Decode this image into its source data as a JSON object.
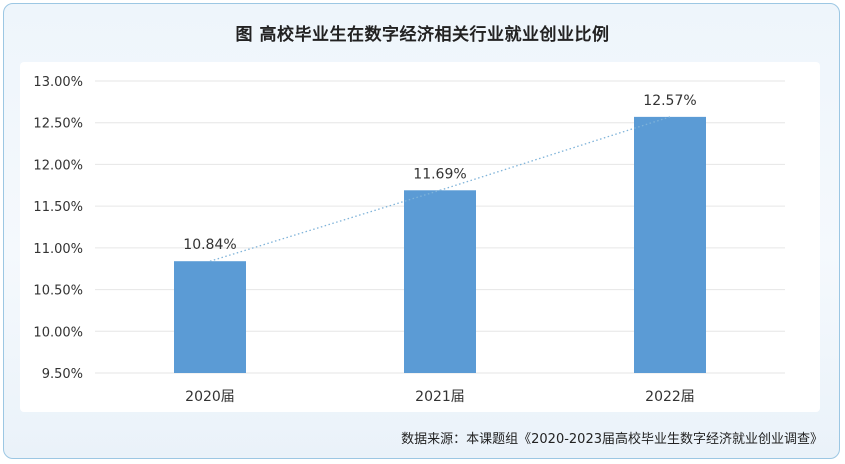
{
  "title": "图  高校毕业生在数字经济相关行业就业创业比例",
  "source": "数据来源：本课题组《2020-2023届高校毕业生数字经济就业创业调查》",
  "colors": {
    "bar": "#5b9bd5",
    "grid": "#e6e6e6",
    "trend": "#7fb3d9",
    "text": "#333333"
  },
  "chart_data": {
    "type": "bar",
    "categories": [
      "2020届",
      "2021届",
      "2022届"
    ],
    "values": [
      10.84,
      11.69,
      12.57
    ],
    "value_labels": [
      "10.84%",
      "11.69%",
      "12.57%"
    ],
    "ylim": [
      9.5,
      13.0
    ],
    "yticks": [
      9.5,
      10.0,
      10.5,
      11.0,
      11.5,
      12.0,
      12.5,
      13.0
    ],
    "ytick_labels": [
      "9.50%",
      "10.00%",
      "10.50%",
      "11.00%",
      "11.50%",
      "12.00%",
      "12.50%",
      "13.00%"
    ],
    "grid": true,
    "trendline": "dotted",
    "xlabel": "",
    "ylabel": ""
  }
}
